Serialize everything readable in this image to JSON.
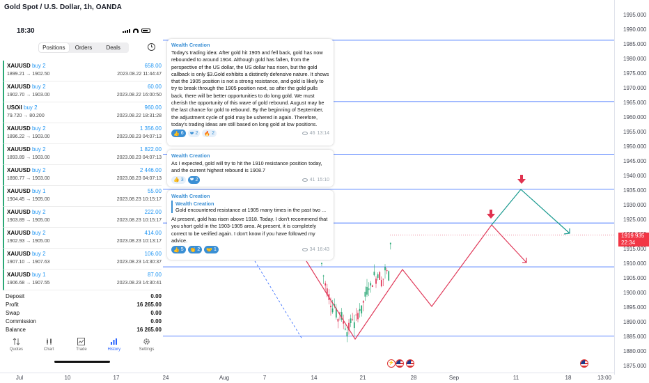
{
  "chart": {
    "title": "Gold Spot / U.S. Dollar, 1h, OANDA",
    "price_labels": [
      "1995.000",
      "1990.000",
      "1985.000",
      "1980.000",
      "1975.000",
      "1970.000",
      "1965.000",
      "1960.000",
      "1955.000",
      "1950.000",
      "1945.000",
      "1940.000",
      "1935.000",
      "1930.000",
      "1925.000",
      "1920.000",
      "1915.000",
      "1910.000",
      "1905.000",
      "1900.000",
      "1895.000",
      "1890.000",
      "1885.000",
      "1880.000",
      "1875.000"
    ],
    "current_price": "1919.935",
    "countdown": "22:34",
    "time_labels": [
      "Jul",
      "10",
      "17",
      "24",
      "Aug",
      "7",
      "14",
      "21",
      "28",
      "Sep",
      "11",
      "18",
      "13:00"
    ],
    "colors": {
      "bull": "#2aa876",
      "bear": "#e03a5a",
      "hline": "#2962ff",
      "tealpath": "#1a9a8f",
      "redpath": "#e03a5a"
    }
  },
  "phone": {
    "status_time": "18:30",
    "tabs": [
      "Positions",
      "Orders",
      "Deals"
    ],
    "active_tab": "Positions",
    "positions": [
      {
        "symbol": "XAUUSD",
        "side": "buy 2",
        "pnl": "658.00",
        "price": "1899.21 → 1902.50",
        "date": "2023.08.22 11:44:47"
      },
      {
        "symbol": "XAUUSD",
        "side": "buy 2",
        "pnl": "60.00",
        "price": "1902.70 → 1903.00",
        "date": "2023.08.22 16:00:50"
      },
      {
        "symbol": "USOil",
        "side": "buy 2",
        "pnl": "960.00",
        "price": "79.720 → 80.200",
        "date": "2023.08.22 18:31:28"
      },
      {
        "symbol": "XAUUSD",
        "side": "buy 2",
        "pnl": "1 356.00",
        "price": "1896.22 → 1903.00",
        "date": "2023.08.23 04:07:13"
      },
      {
        "symbol": "XAUUSD",
        "side": "buy 2",
        "pnl": "1 822.00",
        "price": "1893.89 → 1903.00",
        "date": "2023.08.23 04:07:13"
      },
      {
        "symbol": "XAUUSD",
        "side": "buy 2",
        "pnl": "2 446.00",
        "price": "1890.77 → 1903.00",
        "date": "2023.08.23 04:07:13"
      },
      {
        "symbol": "XAUUSD",
        "side": "buy 1",
        "pnl": "55.00",
        "price": "1904.45 → 1905.00",
        "date": "2023.08.23 10:15:17"
      },
      {
        "symbol": "XAUUSD",
        "side": "buy 2",
        "pnl": "222.00",
        "price": "1903.89 → 1905.00",
        "date": "2023.08.23 10:15:17"
      },
      {
        "symbol": "XAUUSD",
        "side": "buy 2",
        "pnl": "414.00",
        "price": "1902.93 → 1905.00",
        "date": "2023.08.23 10:13:17"
      },
      {
        "symbol": "XAUUSD",
        "side": "buy 2",
        "pnl": "106.00",
        "price": "1907.10 → 1907.63",
        "date": "2023.08.23 14:30:37"
      },
      {
        "symbol": "XAUUSD",
        "side": "buy 1",
        "pnl": "87.00",
        "price": "1906.68 → 1907.55",
        "date": "2023.08.23 14:30:41"
      }
    ],
    "summary": [
      {
        "label": "Deposit",
        "value": "0.00"
      },
      {
        "label": "Profit",
        "value": "16 265.00"
      },
      {
        "label": "Swap",
        "value": "0.00"
      },
      {
        "label": "Commission",
        "value": "0.00"
      },
      {
        "label": "Balance",
        "value": "16 265.00"
      }
    ],
    "nav": [
      {
        "label": "Quotes",
        "icon": "quotes-icon"
      },
      {
        "label": "Chart",
        "icon": "candles-icon"
      },
      {
        "label": "Trade",
        "icon": "trade-chart-icon"
      },
      {
        "label": "History",
        "icon": "history-icon",
        "active": true
      },
      {
        "label": "Settings",
        "icon": "gear-icon"
      }
    ]
  },
  "messages": [
    {
      "author": "Wealth Creation",
      "text": "Today's trading idea:  After gold hit 1905 and fell back, gold has now rebounded to around 1904. Although gold has fallen, from the perspective of the US dollar, the US dollar has risen, but the gold callback is only $3.Gold exhibits a distinctly defensive nature. It shows that the 1905 position is not a strong resistance, and gold is likely to try to break through the 1905 position next, so after the gold pulls back, there will be better opportunities to do long gold. We must cherish the opportunity of this wave of gold rebound. August may be the last chance for gold to rebound. By the beginning of September, the adjustment cycle of gold may be ushered in again. Therefore, today's trading ideas are still based on long gold at low positions.",
      "reactions": [
        {
          "emoji": "👍",
          "count": "6",
          "sel": true
        },
        {
          "emoji": "❤",
          "count": "2"
        },
        {
          "emoji": "🔥",
          "count": "2"
        }
      ],
      "views": "46",
      "time": "13:14"
    },
    {
      "author": "Wealth Creation",
      "text": "As I expected, gold will try to hit the 1910 resistance position today, and the current highest rebound is 1908.7",
      "reactions": [
        {
          "emoji": "👍",
          "count": "3"
        },
        {
          "emoji": "❤",
          "count": "2",
          "sel": true
        }
      ],
      "views": "41",
      "time": "15:10"
    },
    {
      "author": "Wealth Creation",
      "quote_author": "Wealth Creation",
      "quote_text": "Gold encountered resistance at 1905 many times in the past two ...",
      "text": "At present, gold has risen above 1918. Today. I don't recommend that you short gold in the 1903-1905 area. At present, it is completely correct to be verified again. I don't know if you have followed my advice.",
      "reactions": [
        {
          "emoji": "👍",
          "count": "5",
          "sel": true
        },
        {
          "emoji": "👏",
          "count": "2",
          "sel": true
        },
        {
          "emoji": "🤝",
          "count": "1",
          "sel": true
        }
      ],
      "views": "34",
      "time": "16:43"
    }
  ]
}
